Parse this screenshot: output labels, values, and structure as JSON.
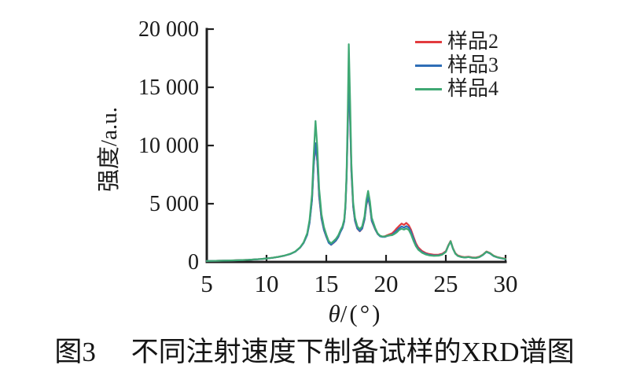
{
  "caption": {
    "number": "图3",
    "text": "不同注射速度下制备试样的XRD谱图"
  },
  "chart_data": {
    "type": "line",
    "title": "",
    "xlabel": "θ/(°)",
    "xlabel_italic": "θ",
    "xlabel_rest": "/(°)",
    "ylabel": "强度/a.u.",
    "xlim": [
      5,
      30
    ],
    "ylim": [
      0,
      20000
    ],
    "xticks": [
      5,
      10,
      15,
      20,
      25,
      30
    ],
    "xtick_labels": [
      "5",
      "10",
      "15",
      "20",
      "25",
      "30"
    ],
    "yticks": [
      0,
      5000,
      10000,
      15000,
      20000
    ],
    "ytick_labels": [
      "0",
      "5 000",
      "10 000",
      "15 000",
      "20 000"
    ],
    "grid": false,
    "legend_position": "top-right-inside",
    "axis_color": "#1f1f1f",
    "x": [
      5,
      5.5,
      6,
      6.5,
      7,
      7.5,
      8,
      8.5,
      9,
      9.5,
      10,
      10.5,
      11,
      11.5,
      12,
      12.4,
      12.8,
      13.1,
      13.4,
      13.6,
      13.8,
      13.95,
      14.1,
      14.25,
      14.4,
      14.6,
      14.8,
      15,
      15.2,
      15.4,
      15.6,
      15.8,
      16,
      16.2,
      16.35,
      16.5,
      16.6,
      16.7,
      16.8,
      16.88,
      17,
      17.1,
      17.25,
      17.4,
      17.6,
      17.8,
      18,
      18.2,
      18.35,
      18.5,
      18.65,
      18.8,
      19.1,
      19.3,
      19.5,
      19.7,
      19.9,
      20.1,
      20.3,
      20.5,
      20.7,
      20.9,
      21.1,
      21.3,
      21.5,
      21.7,
      21.9,
      22.1,
      22.3,
      22.5,
      22.7,
      23,
      23.3,
      23.6,
      24,
      24.4,
      24.7,
      25,
      25.2,
      25.4,
      25.6,
      25.8,
      26,
      26.3,
      26.6,
      26.9,
      27.2,
      27.5,
      27.8,
      28.1,
      28.4,
      28.7,
      29,
      29.3,
      29.6,
      30
    ],
    "series": [
      {
        "name": "样品2",
        "color": "#e23b3e",
        "values": [
          80,
          90,
          100,
          112,
          124,
          140,
          160,
          184,
          214,
          248,
          298,
          356,
          436,
          542,
          690,
          885,
          1230,
          1640,
          2350,
          3400,
          5350,
          8350,
          10100,
          8600,
          5600,
          3700,
          2740,
          2160,
          1700,
          1470,
          1630,
          1820,
          2140,
          2620,
          2920,
          3500,
          4700,
          7300,
          11900,
          15900,
          12100,
          7800,
          4750,
          3520,
          2850,
          2630,
          2850,
          3620,
          4850,
          5550,
          4750,
          3520,
          2780,
          2400,
          2220,
          2180,
          2200,
          2300,
          2380,
          2450,
          2650,
          2900,
          3100,
          3300,
          3180,
          3350,
          3150,
          2750,
          2150,
          1600,
          1250,
          950,
          780,
          680,
          620,
          630,
          700,
          920,
          1400,
          1800,
          1180,
          740,
          560,
          460,
          410,
          450,
          390,
          370,
          450,
          630,
          900,
          770,
          540,
          420,
          350,
          270
        ]
      },
      {
        "name": "样品3",
        "color": "#2f6eb6",
        "values": [
          78,
          88,
          98,
          110,
          122,
          138,
          158,
          182,
          212,
          246,
          295,
          352,
          432,
          538,
          685,
          880,
          1220,
          1620,
          2320,
          3350,
          5300,
          8300,
          10200,
          8700,
          5700,
          3750,
          2760,
          2180,
          1650,
          1480,
          1640,
          1830,
          2130,
          2600,
          2900,
          3480,
          4650,
          7200,
          11800,
          15650,
          12200,
          7900,
          4800,
          3550,
          2870,
          2650,
          2870,
          3650,
          4900,
          5600,
          4800,
          3550,
          2800,
          2400,
          2200,
          2150,
          2150,
          2230,
          2280,
          2320,
          2500,
          2700,
          2900,
          3050,
          2950,
          3080,
          2950,
          2550,
          2000,
          1450,
          1120,
          850,
          700,
          610,
          550,
          570,
          650,
          870,
          1360,
          1760,
          1130,
          700,
          520,
          420,
          380,
          420,
          360,
          340,
          410,
          590,
          860,
          730,
          500,
          390,
          320,
          240
        ]
      },
      {
        "name": "样品4",
        "color": "#3fa873",
        "values": [
          80,
          90,
          100,
          112,
          125,
          140,
          160,
          185,
          215,
          250,
          300,
          360,
          440,
          550,
          700,
          900,
          1250,
          1680,
          2450,
          3600,
          5800,
          9200,
          12100,
          9800,
          6300,
          4100,
          3000,
          2350,
          1800,
          1600,
          1780,
          1980,
          2280,
          2750,
          3050,
          3650,
          4900,
          7600,
          13200,
          18700,
          13500,
          8500,
          5100,
          3800,
          3050,
          2820,
          3050,
          3900,
          5300,
          6100,
          5200,
          3800,
          2900,
          2450,
          2250,
          2180,
          2180,
          2250,
          2300,
          2300,
          2400,
          2550,
          2750,
          2850,
          2780,
          2870,
          2750,
          2350,
          1800,
          1350,
          1050,
          800,
          650,
          570,
          520,
          540,
          620,
          850,
          1350,
          1780,
          1150,
          700,
          520,
          420,
          380,
          420,
          360,
          340,
          420,
          600,
          880,
          750,
          520,
          400,
          330,
          250
        ]
      }
    ]
  }
}
